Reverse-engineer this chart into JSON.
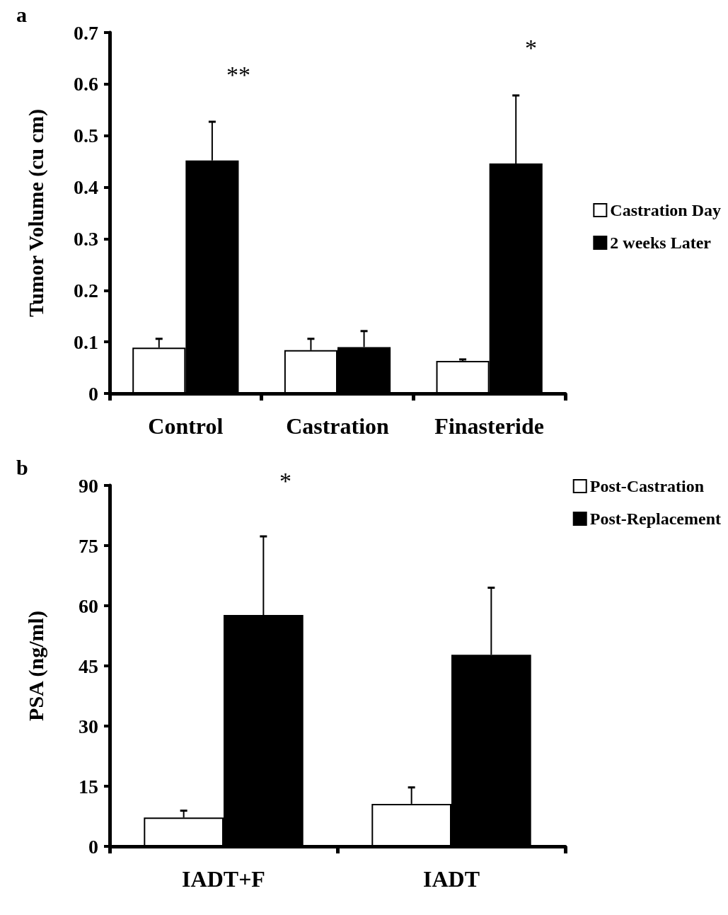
{
  "chart_data": [
    {
      "type": "bar",
      "title": "a",
      "ylabel": "Tumor Volume (cu cm)",
      "categories": [
        "Control",
        "Castration",
        "Finasteride"
      ],
      "series": [
        {
          "name": "Castration Day",
          "color": "#ffffff",
          "values": [
            0.089,
            0.084,
            0.063
          ],
          "errors": [
            [
              0.089,
              0.106
            ],
            [
              0.084,
              0.106
            ],
            [
              0.063,
              0.066
            ]
          ]
        },
        {
          "name": "2 weeks Later",
          "color": "#000000",
          "values": [
            0.452,
            0.09,
            0.446
          ],
          "errors": [
            [
              0.452,
              0.527
            ],
            [
              0.09,
              0.121
            ],
            [
              0.446,
              0.578
            ]
          ]
        }
      ],
      "ylim": [
        0,
        0.7
      ],
      "yticks": [
        0,
        0.1,
        0.2,
        0.3,
        0.4,
        0.5,
        0.6,
        0.7
      ],
      "grid": false,
      "legend": "right",
      "annotations": [
        "**",
        "*"
      ]
    },
    {
      "type": "bar",
      "title": "b",
      "ylabel": "PSA (ng/ml)",
      "categories": [
        "IADT+F",
        "IADT"
      ],
      "series": [
        {
          "name": "Post-Castration",
          "color": "#ffffff",
          "values": [
            7.2,
            10.6
          ],
          "errors": [
            [
              7.2,
              8.9
            ],
            [
              10.6,
              14.7
            ]
          ]
        },
        {
          "name": "Post-Replacement",
          "color": "#000000",
          "values": [
            57.7,
            47.8
          ],
          "errors": [
            [
              57.7,
              77.3
            ],
            [
              47.8,
              64.5
            ]
          ]
        }
      ],
      "ylim": [
        0,
        90
      ],
      "yticks": [
        0,
        15,
        30,
        45,
        60,
        75,
        90
      ],
      "grid": false,
      "legend": "top right",
      "annotations": [
        "*"
      ]
    }
  ]
}
